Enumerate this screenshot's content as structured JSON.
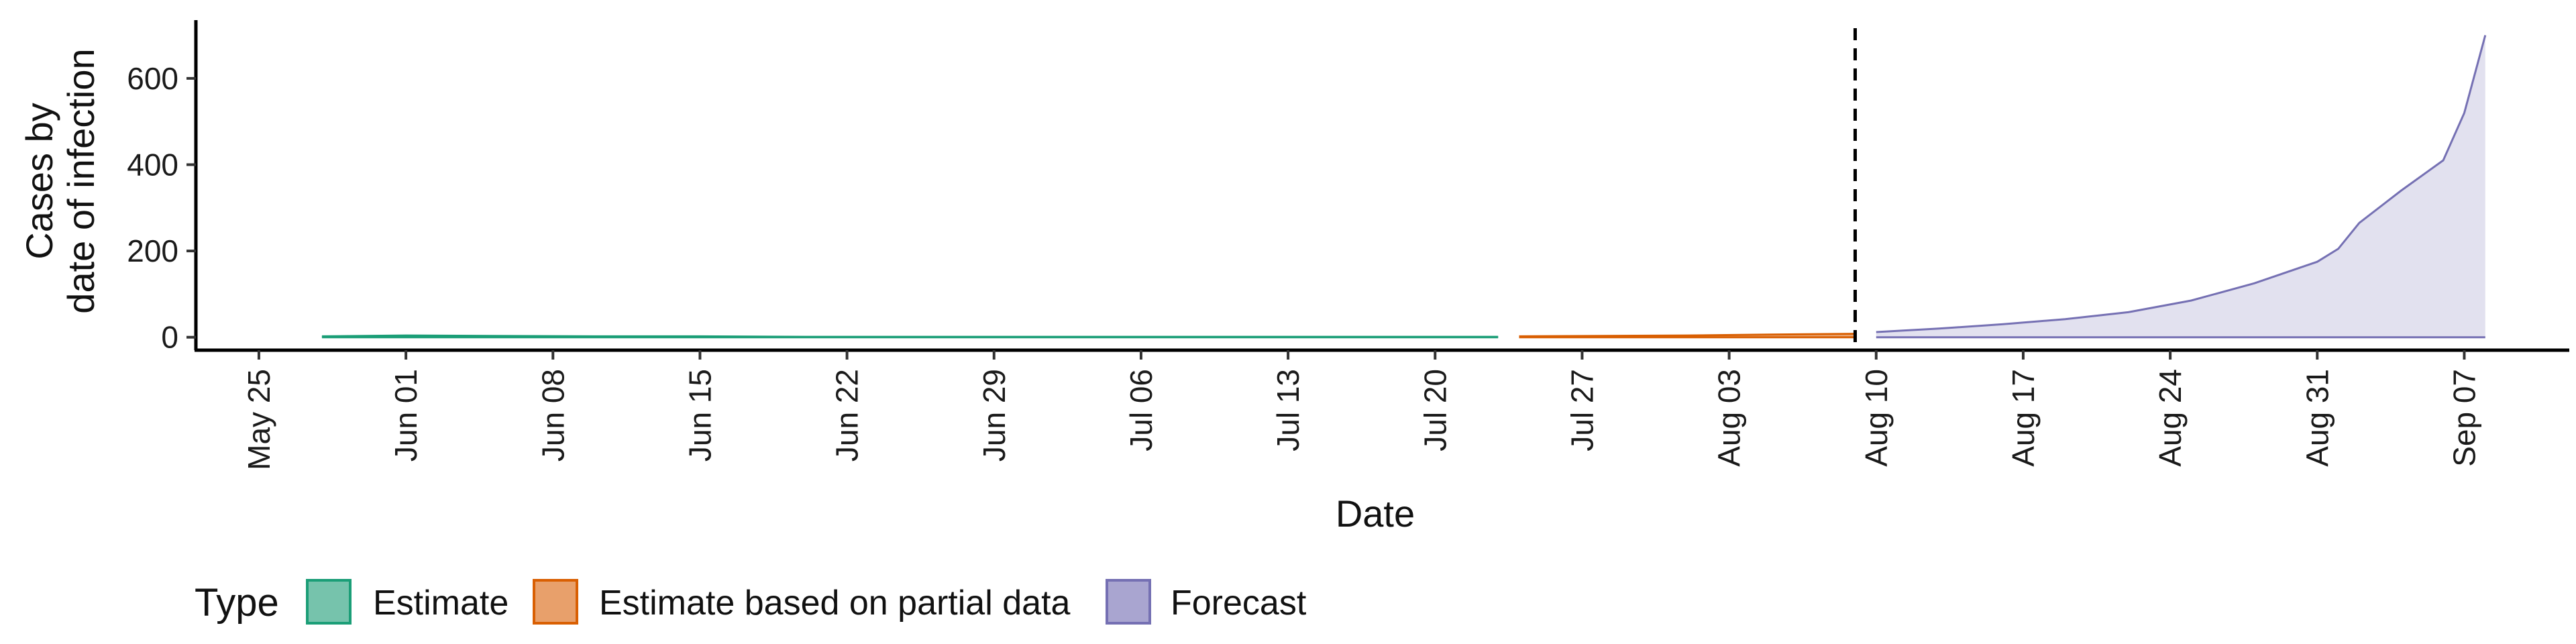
{
  "chart_data": {
    "type": "area",
    "xlabel": "Date",
    "ylabel_lines": [
      "Cases by",
      "date of infection"
    ],
    "yticks": [
      0,
      200,
      400,
      600
    ],
    "ylim": [
      -30,
      735
    ],
    "x_tick_labels": [
      "May 25",
      "Jun 01",
      "Jun 08",
      "Jun 15",
      "Jun 22",
      "Jun 29",
      "Jul 06",
      "Jul 13",
      "Jul 20",
      "Jul 27",
      "Aug 03",
      "Aug 10",
      "Aug 17",
      "Aug 24",
      "Aug 31",
      "Sep 07"
    ],
    "x_tick_dates": [
      "2020-05-25",
      "2020-06-01",
      "2020-06-08",
      "2020-06-15",
      "2020-06-22",
      "2020-06-29",
      "2020-07-06",
      "2020-07-13",
      "2020-07-20",
      "2020-07-27",
      "2020-08-03",
      "2020-08-10",
      "2020-08-17",
      "2020-08-24",
      "2020-08-31",
      "2020-09-07"
    ],
    "xlim": [
      "2020-05-22",
      "2020-09-12"
    ],
    "vline_date": "2020-08-09",
    "grid": false,
    "legend_title": "Type",
    "legend_position": "bottom",
    "series": [
      {
        "name": "Estimate",
        "line_color": "#1b9e77",
        "fill_color": "#76c3ac",
        "x": [
          "2020-05-28",
          "2020-06-01",
          "2020-06-05",
          "2020-06-10",
          "2020-06-15",
          "2020-06-20",
          "2020-06-25",
          "2020-06-30",
          "2020-07-05",
          "2020-07-10",
          "2020-07-15",
          "2020-07-20",
          "2020-07-23"
        ],
        "lower": [
          0,
          0,
          0,
          0,
          0,
          0,
          0,
          0,
          0,
          0,
          0,
          0,
          0
        ],
        "upper": [
          2,
          4,
          3,
          2,
          2,
          1,
          1,
          1,
          1,
          1,
          1,
          1,
          1
        ]
      },
      {
        "name": "Estimate based on partial data",
        "line_color": "#d95f02",
        "fill_color": "#e8a06b",
        "x": [
          "2020-07-24",
          "2020-07-28",
          "2020-08-01",
          "2020-08-05",
          "2020-08-09"
        ],
        "lower": [
          0,
          0,
          0,
          0,
          0
        ],
        "upper": [
          2,
          3,
          4,
          6,
          8
        ]
      },
      {
        "name": "Forecast",
        "line_color": "#7570b3",
        "fill_color": "#dddcec",
        "x": [
          "2020-08-10",
          "2020-08-13",
          "2020-08-16",
          "2020-08-19",
          "2020-08-22",
          "2020-08-25",
          "2020-08-28",
          "2020-08-31",
          "2020-09-01",
          "2020-09-02",
          "2020-09-04",
          "2020-09-06",
          "2020-09-07",
          "2020-09-08"
        ],
        "lower": [
          0,
          0,
          0,
          0,
          0,
          0,
          0,
          0,
          0,
          0,
          0,
          0,
          0,
          0
        ],
        "upper": [
          12,
          20,
          30,
          42,
          58,
          85,
          125,
          175,
          205,
          265,
          340,
          410,
          520,
          700
        ]
      }
    ]
  }
}
